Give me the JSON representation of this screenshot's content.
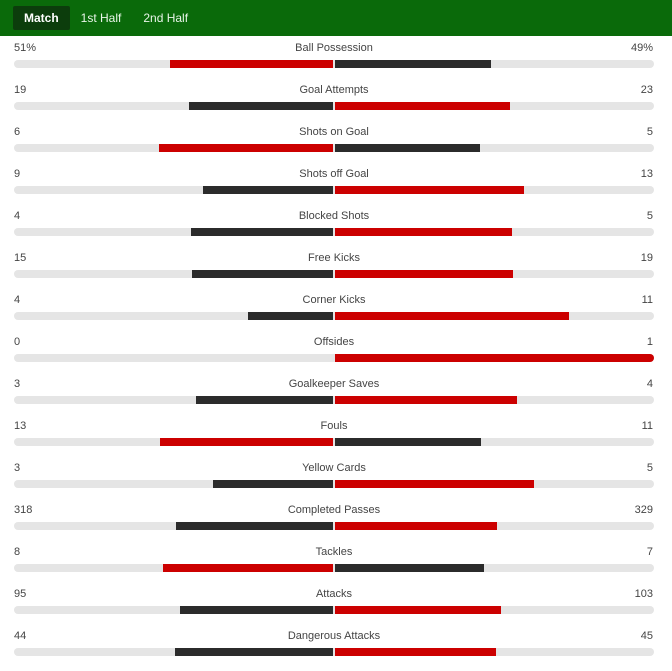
{
  "tabs": [
    {
      "label": "Match",
      "active": true
    },
    {
      "label": "1st Half",
      "active": false
    },
    {
      "label": "2nd Half",
      "active": false
    }
  ],
  "colors": {
    "leader": "#cc0000",
    "trailer": "#2b2b2b",
    "track": "#e5e5e5",
    "header": "#0a6a0a"
  },
  "stats": [
    {
      "label": "Ball Possession",
      "home": "51%",
      "away": "49%",
      "home_value": 51,
      "away_value": 49
    },
    {
      "label": "Goal Attempts",
      "home": "19",
      "away": "23",
      "home_value": 19,
      "away_value": 23
    },
    {
      "label": "Shots on Goal",
      "home": "6",
      "away": "5",
      "home_value": 6,
      "away_value": 5
    },
    {
      "label": "Shots off Goal",
      "home": "9",
      "away": "13",
      "home_value": 9,
      "away_value": 13
    },
    {
      "label": "Blocked Shots",
      "home": "4",
      "away": "5",
      "home_value": 4,
      "away_value": 5
    },
    {
      "label": "Free Kicks",
      "home": "15",
      "away": "19",
      "home_value": 15,
      "away_value": 19
    },
    {
      "label": "Corner Kicks",
      "home": "4",
      "away": "11",
      "home_value": 4,
      "away_value": 11
    },
    {
      "label": "Offsides",
      "home": "0",
      "away": "1",
      "home_value": 0,
      "away_value": 1
    },
    {
      "label": "Goalkeeper Saves",
      "home": "3",
      "away": "4",
      "home_value": 3,
      "away_value": 4
    },
    {
      "label": "Fouls",
      "home": "13",
      "away": "11",
      "home_value": 13,
      "away_value": 11
    },
    {
      "label": "Yellow Cards",
      "home": "3",
      "away": "5",
      "home_value": 3,
      "away_value": 5
    },
    {
      "label": "Completed Passes",
      "home": "318",
      "away": "329",
      "home_value": 318,
      "away_value": 329
    },
    {
      "label": "Tackles",
      "home": "8",
      "away": "7",
      "home_value": 8,
      "away_value": 7
    },
    {
      "label": "Attacks",
      "home": "95",
      "away": "103",
      "home_value": 95,
      "away_value": 103
    },
    {
      "label": "Dangerous Attacks",
      "home": "44",
      "away": "45",
      "home_value": 44,
      "away_value": 45
    }
  ]
}
